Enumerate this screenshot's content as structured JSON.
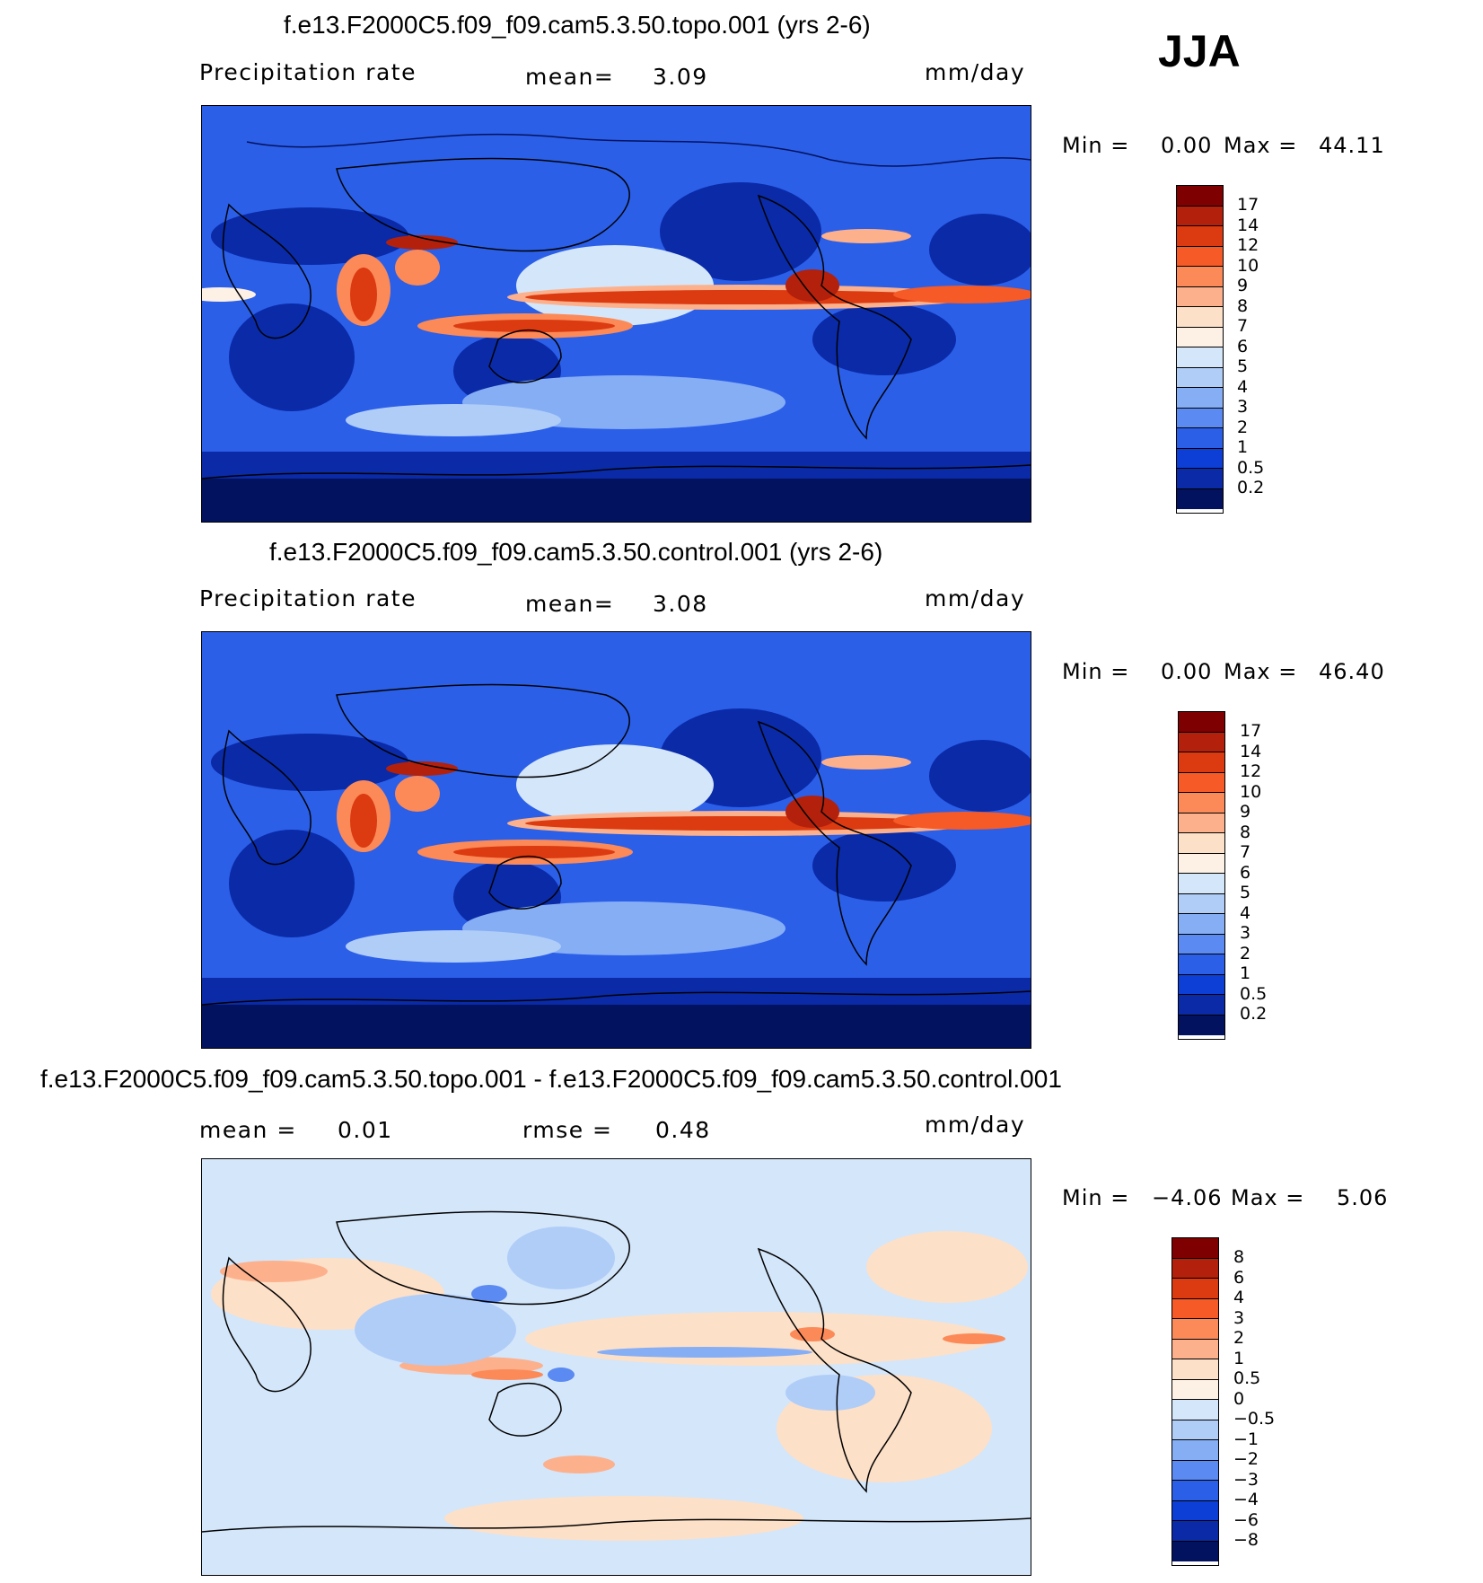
{
  "season": "JJA",
  "panels": [
    {
      "title": "f.e13.F2000C5.f09_f09.cam5.3.50.topo.001 (yrs 2-6)",
      "left_label": "Precipitation rate",
      "mid_label": "mean=",
      "mid_value": "3.09",
      "units": "mm/day",
      "min_label": "Min =",
      "min_value": "0.00",
      "max_label": "Max =",
      "max_value": "44.11",
      "colorbar_ticks": [
        "17",
        "14",
        "12",
        "10",
        "9",
        "8",
        "7",
        "6",
        "5",
        "4",
        "3",
        "2",
        "1",
        "0.5",
        "0.2"
      ],
      "colors": [
        "#7f0000",
        "#b3200b",
        "#dc3a10",
        "#f65a27",
        "#fc8a58",
        "#fdb08c",
        "#fde0c8",
        "#fdf0e4",
        "#d4e6fa",
        "#b0cdf8",
        "#86aef5",
        "#5a8af2",
        "#2b5fe8",
        "#0d3fd6",
        "#0a2aa8",
        "#03125e"
      ]
    },
    {
      "title": "f.e13.F2000C5.f09_f09.cam5.3.50.control.001 (yrs 2-6)",
      "left_label": "Precipitation rate",
      "mid_label": "mean=",
      "mid_value": "3.08",
      "units": "mm/day",
      "min_label": "Min =",
      "min_value": "0.00",
      "max_label": "Max =",
      "max_value": "46.40",
      "colorbar_ticks": [
        "17",
        "14",
        "12",
        "10",
        "9",
        "8",
        "7",
        "6",
        "5",
        "4",
        "3",
        "2",
        "1",
        "0.5",
        "0.2"
      ],
      "colors": [
        "#7f0000",
        "#b3200b",
        "#dc3a10",
        "#f65a27",
        "#fc8a58",
        "#fdb08c",
        "#fde0c8",
        "#fdf0e4",
        "#d4e6fa",
        "#b0cdf8",
        "#86aef5",
        "#5a8af2",
        "#2b5fe8",
        "#0d3fd6",
        "#0a2aa8",
        "#03125e"
      ]
    },
    {
      "title": "f.e13.F2000C5.f09_f09.cam5.3.50.topo.001 - f.e13.F2000C5.f09_f09.cam5.3.50.control.001",
      "left_label": "mean =",
      "left_value": "0.01",
      "mid_label": "rmse =",
      "mid_value": "0.48",
      "units": "mm/day",
      "min_label": "Min =",
      "min_value": "−4.06",
      "max_label": "Max =",
      "max_value": "5.06",
      "colorbar_ticks": [
        "8",
        "6",
        "4",
        "3",
        "2",
        "1",
        "0.5",
        "0",
        "−0.5",
        "−1",
        "−2",
        "−3",
        "−4",
        "−6",
        "−8"
      ],
      "colors": [
        "#7f0000",
        "#b3200b",
        "#dc3a10",
        "#f65a27",
        "#fc8a58",
        "#fdb08c",
        "#fde0c8",
        "#fdf0e4",
        "#d4e6fa",
        "#b0cdf8",
        "#86aef5",
        "#5a8af2",
        "#2b5fe8",
        "#0d3fd6",
        "#0a2aa8",
        "#03125e"
      ]
    }
  ]
}
